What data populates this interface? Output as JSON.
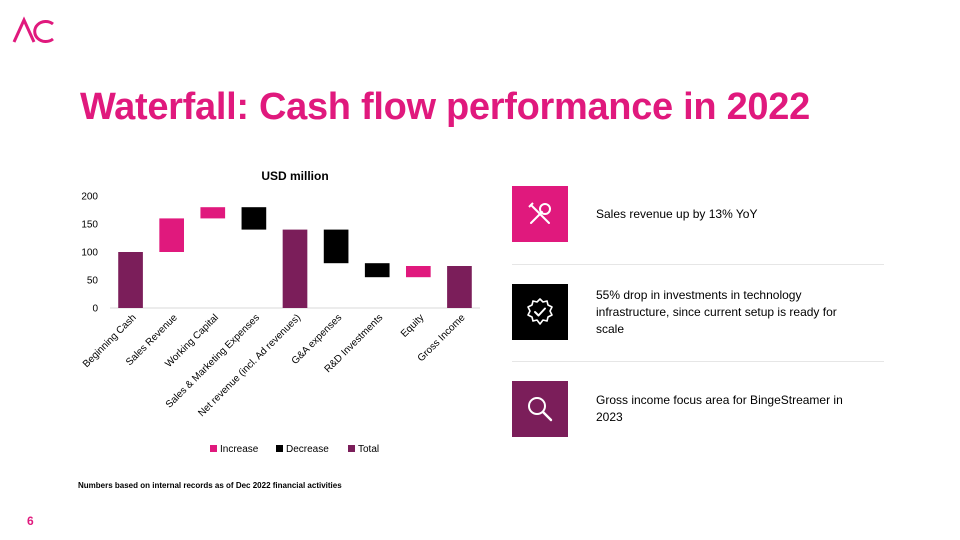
{
  "page_title": "Waterfall: Cash flow performance in 2022",
  "page_number": "6",
  "footnote": "Numbers based on internal records as of Dec 2022 financial activities",
  "colors": {
    "accent": "#E0197D",
    "increase": "#E0197D",
    "decrease": "#000000",
    "total": "#7B1E5A"
  },
  "insights": [
    {
      "icon": "tools-icon",
      "icon_bg": "#E0197D",
      "text": "Sales revenue up by 13% YoY"
    },
    {
      "icon": "badge-check-icon",
      "icon_bg": "#000000",
      "text": "55% drop in investments in technology infrastructure, since current setup is ready for scale"
    },
    {
      "icon": "magnifier-icon",
      "icon_bg": "#7B1E5A",
      "text": "Gross income focus area for BingeStreamer in 2023"
    }
  ],
  "chart_data": {
    "type": "bar",
    "subtype": "waterfall",
    "title": "USD million",
    "xlabel": "",
    "ylabel": "",
    "ylim": [
      0,
      200
    ],
    "yticks": [
      0,
      50,
      100,
      150,
      200
    ],
    "grid": false,
    "legend_position": "bottom",
    "legend": [
      "Increase",
      "Decrease",
      "Total"
    ],
    "categories": [
      "Beginning Cash",
      "Sales Revenue",
      "Working Capital",
      "Sales & Marketing Expenses",
      "Net revenue (incl. Ad revenues)",
      "G&A expenses",
      "R&D Investments",
      "Equity",
      "Gross Income"
    ],
    "bars": [
      {
        "category": "Beginning Cash",
        "kind": "Total",
        "start": 0,
        "end": 100
      },
      {
        "category": "Sales Revenue",
        "kind": "Increase",
        "start": 100,
        "end": 160
      },
      {
        "category": "Working Capital",
        "kind": "Increase",
        "start": 160,
        "end": 180
      },
      {
        "category": "Sales & Marketing Expenses",
        "kind": "Decrease",
        "start": 180,
        "end": 140
      },
      {
        "category": "Net revenue (incl. Ad revenues)",
        "kind": "Total",
        "start": 0,
        "end": 140
      },
      {
        "category": "G&A expenses",
        "kind": "Decrease",
        "start": 140,
        "end": 80
      },
      {
        "category": "R&D Investments",
        "kind": "Decrease",
        "start": 80,
        "end": 55
      },
      {
        "category": "Equity",
        "kind": "Increase",
        "start": 55,
        "end": 75
      },
      {
        "category": "Gross Income",
        "kind": "Total",
        "start": 0,
        "end": 75
      }
    ]
  }
}
